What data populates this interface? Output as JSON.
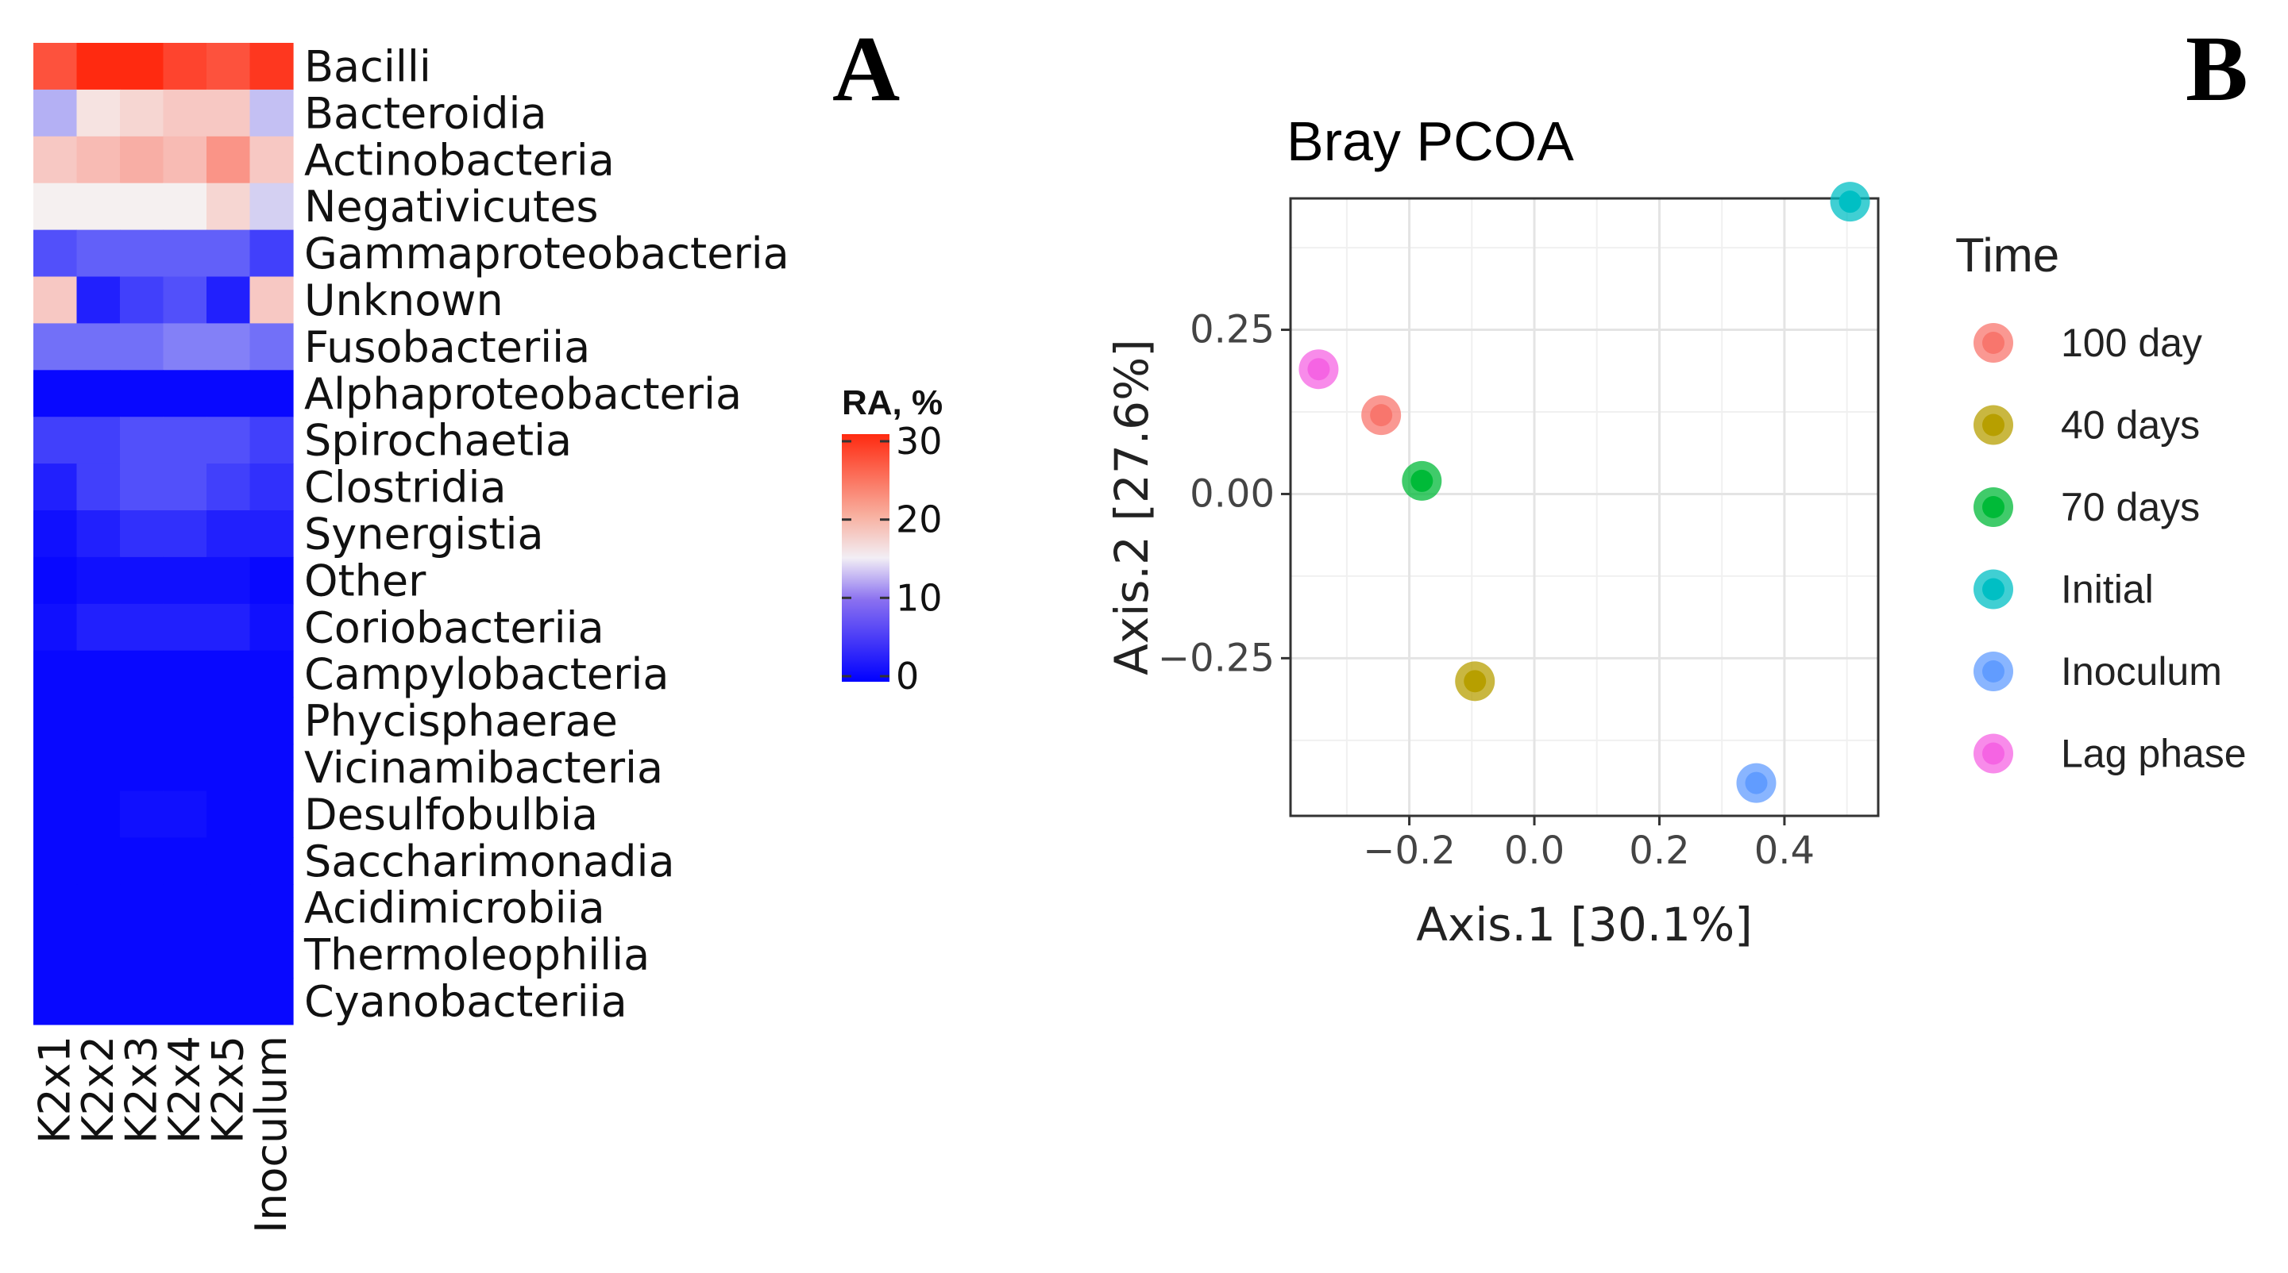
{
  "panels": {
    "a_label": "A",
    "b_label": "B"
  },
  "colors": {
    "low": "#0000ff",
    "mid": "#f5f0f0",
    "high": "#ff2a10"
  },
  "chart_data": [
    {
      "type": "heatmap",
      "rows": [
        "Bacilli",
        "Bacteroidia",
        "Actinobacteria",
        "Negativicutes",
        "Gammaproteobacteria",
        "Unknown",
        "Fusobacteriia",
        "Alphaproteobacteria",
        "Spirochaetia",
        "Clostridia",
        "Synergistia",
        "Other",
        "Coriobacteriia",
        "Campylobacteria",
        "Phycisphaerae",
        "Vicinamibacteria",
        "Desulfobulbia",
        "Saccharimonadia",
        "Acidimicrobiia",
        "Thermoleophilia",
        "Cyanobacteriia"
      ],
      "columns": [
        "K2x1",
        "K2x2",
        "K2x3",
        "K2x4",
        "K2x5",
        "Inoculum"
      ],
      "values": [
        [
          27,
          30,
          30,
          28,
          27,
          29
        ],
        [
          11,
          16,
          17,
          18,
          18,
          12
        ],
        [
          18,
          19,
          20,
          19,
          22,
          18
        ],
        [
          15,
          15,
          15,
          15,
          17,
          13
        ],
        [
          5,
          6,
          6,
          6,
          6,
          4
        ],
        [
          18,
          2,
          4,
          5,
          2,
          18
        ],
        [
          7,
          7,
          7,
          8,
          8,
          7
        ],
        [
          0.5,
          0.5,
          0.5,
          0.5,
          0.5,
          0.5
        ],
        [
          4,
          4,
          5,
          5,
          5,
          4
        ],
        [
          2,
          4,
          5,
          5,
          4,
          3
        ],
        [
          1,
          2,
          3,
          3,
          2,
          2
        ],
        [
          0.5,
          1,
          1,
          1,
          1,
          0.5
        ],
        [
          1,
          2,
          2,
          2,
          2,
          1
        ],
        [
          0.5,
          0.5,
          0.5,
          0.5,
          0.5,
          0.5
        ],
        [
          0.5,
          0.5,
          0.5,
          0.5,
          0.5,
          0.5
        ],
        [
          0.5,
          0.5,
          0.5,
          0.5,
          0.5,
          0.5
        ],
        [
          0.5,
          0.5,
          1,
          1,
          0.5,
          0.5
        ],
        [
          0.5,
          0.5,
          0.5,
          0.5,
          0.5,
          0.5
        ],
        [
          0.5,
          0.5,
          0.5,
          0.5,
          0.5,
          0.5
        ],
        [
          0.5,
          0.5,
          0.5,
          0.5,
          0.5,
          0.5
        ],
        [
          0.5,
          0.5,
          0.5,
          0.5,
          0.5,
          0.5
        ]
      ],
      "colorbar": {
        "title": "RA, %",
        "min": 0,
        "max": 30,
        "ticks": [
          0,
          10,
          20,
          30
        ]
      }
    },
    {
      "type": "scatter",
      "title": "Bray PCOA",
      "xlabel": "Axis.1   [30.1%]",
      "ylabel": "Axis.2   [27.6%]",
      "xlim": [
        -0.39,
        0.55
      ],
      "ylim": [
        -0.49,
        0.45
      ],
      "xticks": [
        -0.2,
        0.0,
        0.2,
        0.4
      ],
      "xtick_labels": [
        "−0.2",
        "0.0",
        "0.2",
        "0.4"
      ],
      "yticks": [
        -0.25,
        0.0,
        0.25
      ],
      "ytick_labels": [
        "−0.25",
        "0.00",
        "0.25"
      ],
      "grid": true,
      "legend": {
        "title": "Time",
        "position": "right",
        "entries": [
          {
            "label": "100 day",
            "color": "#f8766d"
          },
          {
            "label": "40 days",
            "color": "#b79f00"
          },
          {
            "label": "70 days",
            "color": "#00ba38"
          },
          {
            "label": "Initial",
            "color": "#00bfc4"
          },
          {
            "label": "Inoculum",
            "color": "#619cff"
          },
          {
            "label": "Lag phase",
            "color": "#f564e3"
          }
        ]
      },
      "points": [
        {
          "group": "100 day",
          "x": -0.245,
          "y": 0.12
        },
        {
          "group": "40 days",
          "x": -0.095,
          "y": -0.285
        },
        {
          "group": "70 days",
          "x": -0.18,
          "y": 0.02
        },
        {
          "group": "Initial",
          "x": 0.505,
          "y": 0.445
        },
        {
          "group": "Inoculum",
          "x": 0.355,
          "y": -0.44
        },
        {
          "group": "Lag phase",
          "x": -0.345,
          "y": 0.19
        }
      ]
    }
  ]
}
